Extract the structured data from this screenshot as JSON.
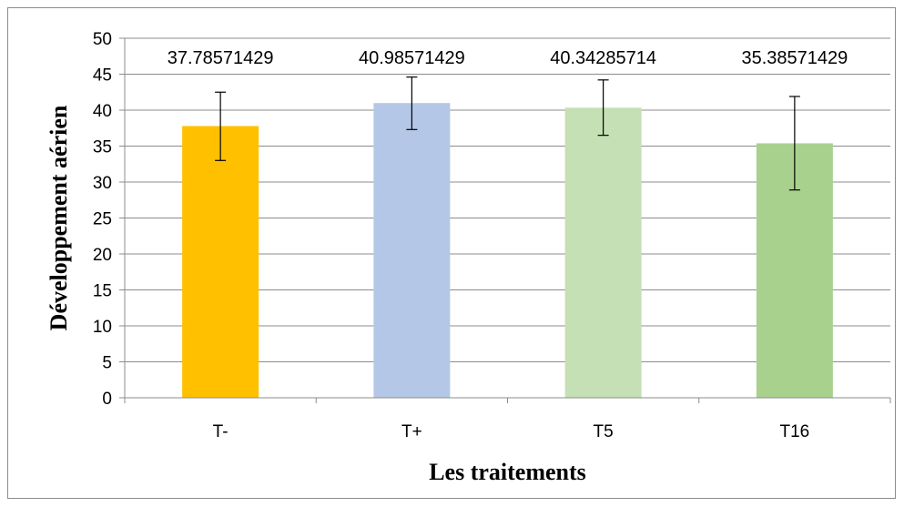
{
  "chart_data": {
    "type": "bar",
    "categories": [
      "T-",
      "T+",
      "T5",
      "T16"
    ],
    "values": [
      37.78571429,
      40.98571429,
      40.34285714,
      35.38571429
    ],
    "value_labels": [
      "37.78571429",
      "40.98571429",
      "40.34285714",
      "35.38571429"
    ],
    "error_bars": [
      {
        "low": 33.0,
        "high": 42.5
      },
      {
        "low": 37.3,
        "high": 44.6
      },
      {
        "low": 36.5,
        "high": 44.2
      },
      {
        "low": 28.9,
        "high": 41.9
      }
    ],
    "bar_colors": [
      "#FFC000",
      "#B4C7E7",
      "#C5E0B4",
      "#A9D18E"
    ],
    "xlabel": "Les traitements",
    "ylabel": "Développement aérien",
    "ylim": [
      0,
      50
    ],
    "yticks": [
      0,
      5,
      10,
      15,
      20,
      25,
      30,
      35,
      40,
      45,
      50
    ],
    "grid": true,
    "legend": "none"
  }
}
